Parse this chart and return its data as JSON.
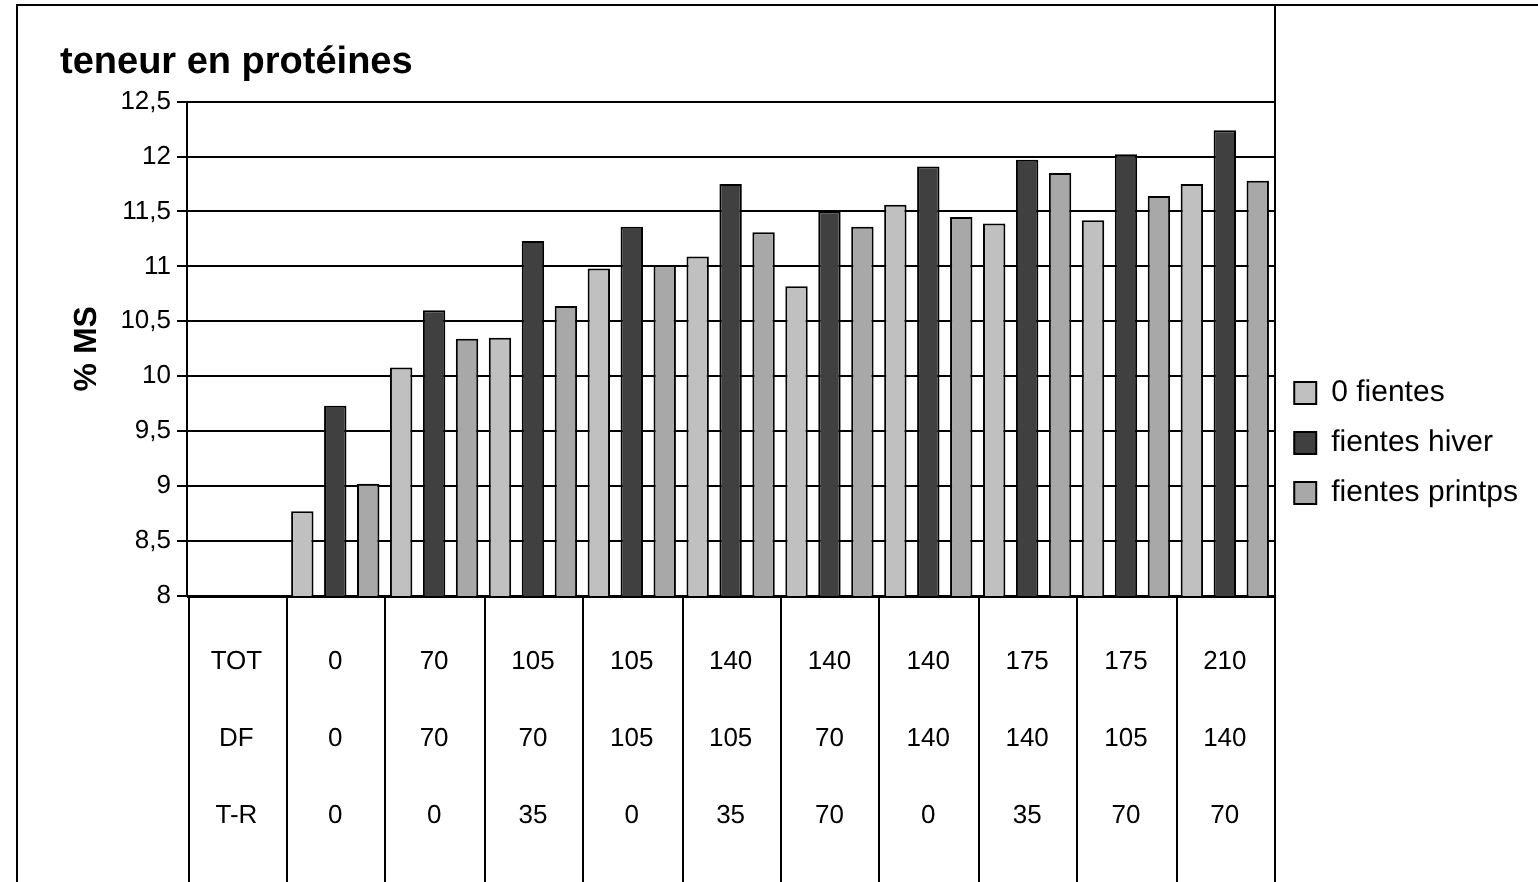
{
  "chart_data": {
    "type": "bar",
    "title": "teneur en protéines",
    "ylabel": "% MS",
    "categories": [
      "TOT\nDF\nT-R",
      "0\n0\n0",
      "70\n70\n0",
      "105\n70\n35",
      "105\n105\n0",
      "140\n105\n35",
      "140\n70\n70",
      "140\n140\n0",
      "175\n140\n35",
      "175\n105\n70",
      "210\n140\n70"
    ],
    "series": [
      {
        "name": "0 fientes",
        "color": "#c0c0c0",
        "values": [
          null,
          8.77,
          10.08,
          10.35,
          10.98,
          11.09,
          10.82,
          11.56,
          11.39,
          11.42,
          11.75
        ]
      },
      {
        "name": "fientes hiver",
        "color": "#404040",
        "values": [
          null,
          9.73,
          10.6,
          11.23,
          11.36,
          11.75,
          11.5,
          11.91,
          11.97,
          12.02,
          12.24
        ]
      },
      {
        "name": "fientes printps",
        "color": "#a8a8a8",
        "values": [
          null,
          9.02,
          10.34,
          10.64,
          11.01,
          11.31,
          11.36,
          11.45,
          11.85,
          11.64,
          11.78
        ]
      }
    ],
    "ylim": [
      8,
      12.5
    ],
    "yticks": [
      8,
      {
        "value": 8.5,
        "label": "8,5"
      },
      9,
      {
        "value": 9.5,
        "label": "9,5"
      },
      10,
      {
        "value": 10.5,
        "label": "10,5"
      },
      11,
      {
        "value": 11.5,
        "label": "11,5"
      },
      12,
      {
        "value": 12.5,
        "label": "12,5"
      }
    ],
    "grid": "y",
    "legend": "right"
  }
}
